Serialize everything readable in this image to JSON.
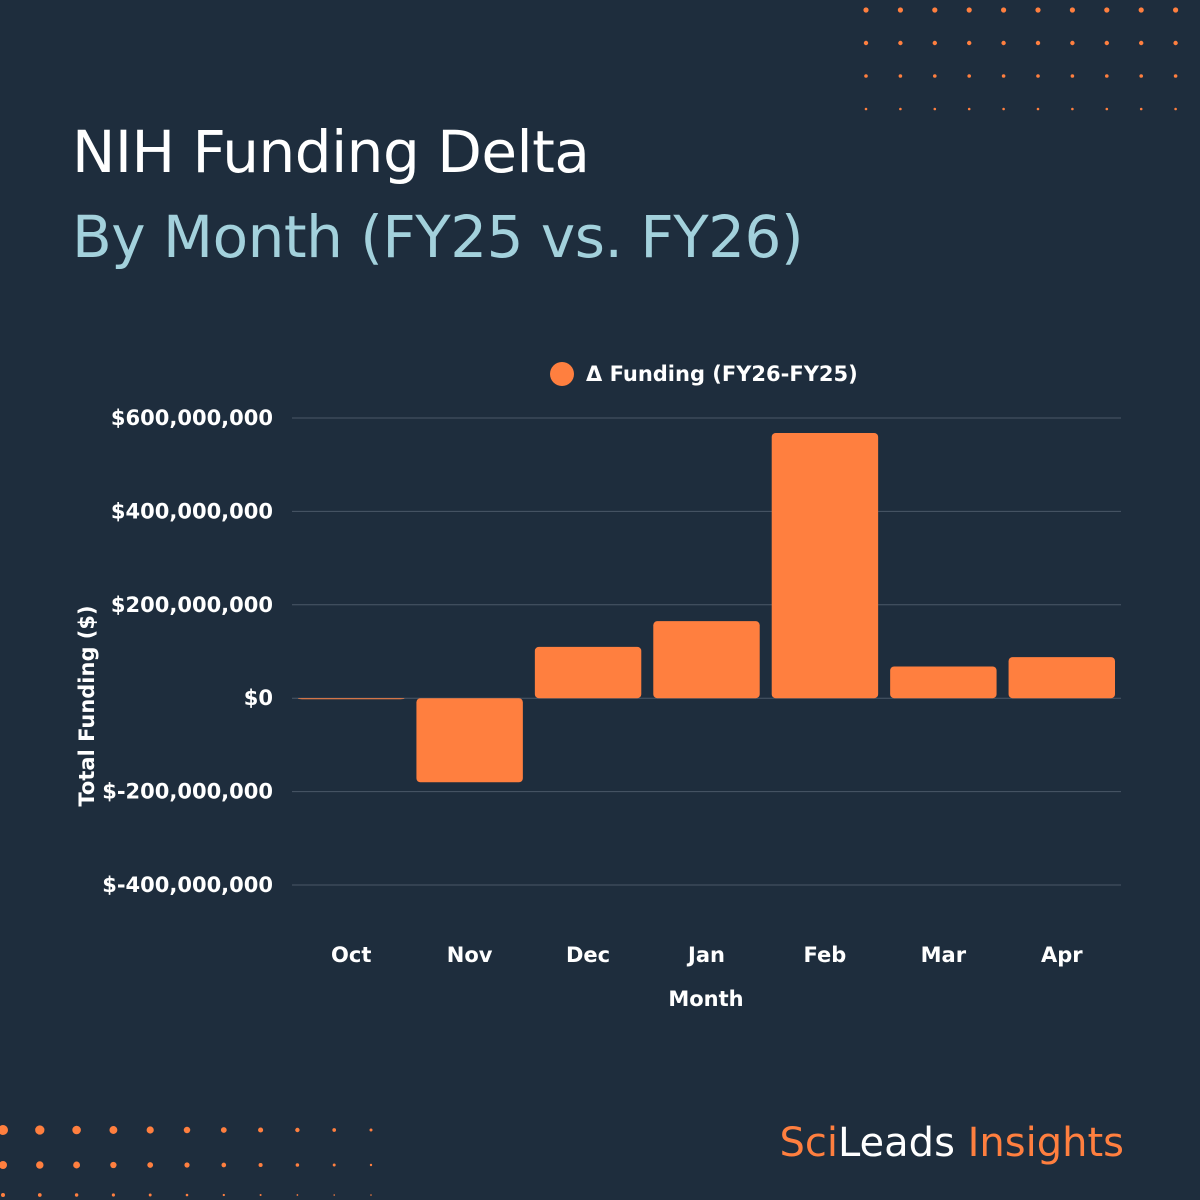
{
  "header": {
    "title": "NIH Funding Delta",
    "subtitle": "By Month (FY25 vs. FY26)"
  },
  "brand": {
    "part1": "Sci",
    "part2": "Leads",
    "part3": " Insights"
  },
  "colors": {
    "background": "#1e2d3d",
    "bar": "#ff7f3f",
    "subtitle": "#a3d1dc",
    "grid": "#4a5868"
  },
  "chart_data": {
    "type": "bar",
    "categories": [
      "Oct",
      "Nov",
      "Dec",
      "Jan",
      "Feb",
      "Mar",
      "Apr"
    ],
    "series": [
      {
        "name": "Δ Funding (FY26-FY25)",
        "values": [
          -1000000,
          -180000000,
          110000000,
          165000000,
          568000000,
          68000000,
          88000000
        ]
      }
    ],
    "xlabel": "Month",
    "ylabel": "Total Funding ($)",
    "ylim": [
      -400000000,
      600000000
    ],
    "yticks": [
      600000000,
      400000000,
      200000000,
      0,
      -200000000,
      -400000000
    ],
    "ytick_labels": [
      "$600,000,000",
      "$400,000,000",
      "$200,000,000",
      "$0",
      "$-200,000,000",
      "$-400,000,000"
    ],
    "grid": true,
    "legend_position": "top-center"
  }
}
